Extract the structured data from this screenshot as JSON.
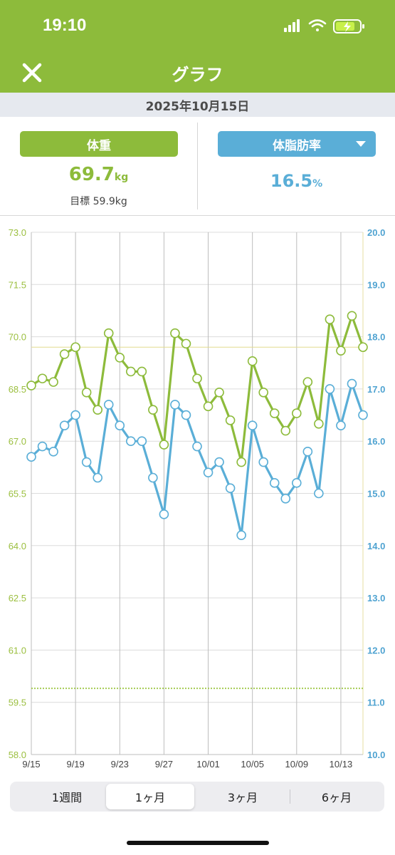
{
  "status_bar": {
    "time": "19:10"
  },
  "header": {
    "title": "グラフ"
  },
  "date": "2025年10月15日",
  "weight": {
    "label": "体重",
    "value": "69.7",
    "unit": "kg",
    "goal": "目標 59.9kg",
    "color": "#8dbb3b"
  },
  "body_fat": {
    "label": "体脂肪率",
    "value": "16.5",
    "unit": "%",
    "color": "#5aaed7"
  },
  "tabs": [
    {
      "label": "1週間",
      "active": false
    },
    {
      "label": "1ヶ月",
      "active": true
    },
    {
      "label": "3ヶ月",
      "active": false
    },
    {
      "label": "6ヶ月",
      "active": false
    }
  ],
  "chart_data": {
    "type": "line",
    "x_tick_labels": [
      "9/15",
      "9/19",
      "9/23",
      "9/27",
      "10/01",
      "10/05",
      "10/09",
      "10/13"
    ],
    "y_left_ticks": [
      "73.0",
      "71.5",
      "70.0",
      "68.5",
      "67.0",
      "65.5",
      "64.0",
      "62.5",
      "61.0",
      "59.5",
      "58.0"
    ],
    "y_right_ticks": [
      "20.0",
      "19.0",
      "18.0",
      "17.0",
      "16.0",
      "15.0",
      "14.0",
      "13.0",
      "12.0",
      "11.0",
      "10.0"
    ],
    "y_left_range": [
      58.0,
      73.0
    ],
    "y_right_range": [
      10.0,
      20.0
    ],
    "dates": [
      "9/15",
      "9/16",
      "9/17",
      "9/18",
      "9/19",
      "9/20",
      "9/21",
      "9/22",
      "9/23",
      "9/24",
      "9/25",
      "9/26",
      "9/27",
      "9/28",
      "9/29",
      "9/30",
      "10/01",
      "10/02",
      "10/03",
      "10/04",
      "10/05",
      "10/06",
      "10/07",
      "10/08",
      "10/09",
      "10/10",
      "10/11",
      "10/12",
      "10/13",
      "10/14",
      "10/15"
    ],
    "series": [
      {
        "axis": "left",
        "color": "#8dbb3b",
        "values": [
          68.6,
          68.8,
          68.7,
          69.5,
          69.7,
          68.4,
          67.9,
          70.1,
          69.4,
          69.0,
          69.0,
          67.9,
          66.9,
          70.1,
          69.8,
          68.8,
          68.0,
          68.4,
          67.6,
          66.4,
          69.3,
          68.4,
          67.8,
          67.3,
          67.8,
          68.7,
          67.5,
          70.5,
          69.6,
          70.6,
          69.7
        ]
      },
      {
        "axis": "right",
        "color": "#5aaed7",
        "values": [
          15.7,
          15.9,
          15.8,
          16.3,
          16.5,
          15.6,
          15.3,
          16.7,
          16.3,
          16.0,
          16.0,
          15.3,
          14.6,
          16.7,
          16.5,
          15.9,
          15.4,
          15.6,
          15.1,
          14.2,
          16.3,
          15.6,
          15.2,
          14.9,
          15.2,
          15.8,
          15.0,
          17.0,
          16.3,
          17.1,
          16.5
        ]
      }
    ],
    "current_weight_line": 69.7,
    "goal_line": 59.9,
    "grid": true
  }
}
